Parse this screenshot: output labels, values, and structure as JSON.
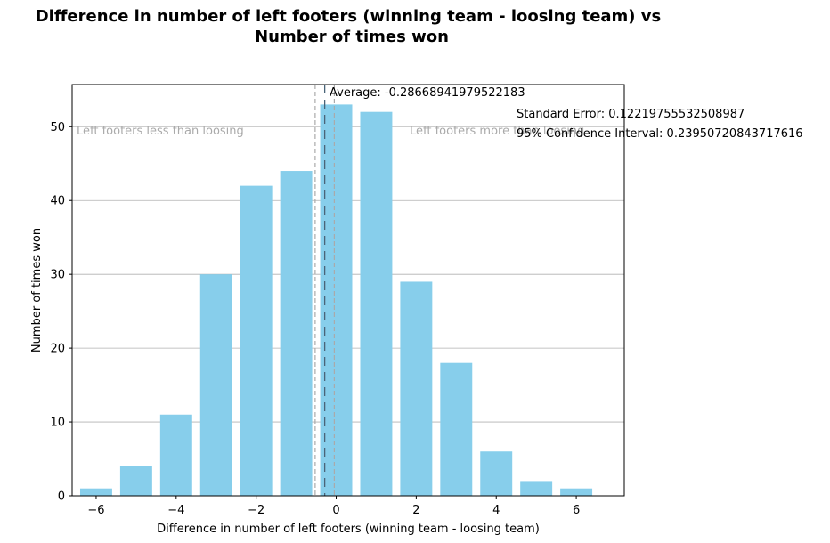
{
  "chart_data": {
    "type": "bar",
    "title_lines": [
      "Difference in number of left footers (winning team - loosing team) vs",
      "Number of times won"
    ],
    "xlabel": "Difference in number of left footers (winning team - loosing team)",
    "ylabel": "Number of times won",
    "x": [
      -6,
      -5,
      -4,
      -3,
      -2,
      -1,
      0,
      1,
      2,
      3,
      4,
      5,
      6
    ],
    "values": [
      1,
      4,
      11,
      30,
      42,
      44,
      53,
      52,
      29,
      18,
      6,
      2,
      1
    ],
    "xlim": [
      -6.6,
      7.2
    ],
    "ylim": [
      0,
      55.7
    ],
    "xticks": [
      -6,
      -4,
      -2,
      0,
      2,
      4,
      6
    ],
    "xtick_labels": [
      "−6",
      "−4",
      "−2",
      "0",
      "2",
      "4",
      "6"
    ],
    "yticks": [
      0,
      10,
      20,
      30,
      40,
      50
    ],
    "ytick_labels": [
      "0",
      "10",
      "20",
      "30",
      "40",
      "50"
    ],
    "bar_color": "#87ceeb",
    "grid": "horizontal",
    "mean_value": -0.28668941979522183,
    "ci_lower": -0.526196628232398,
    "ci_upper": -0.04718221135804567,
    "average_text": "Average: -0.28668941979522183",
    "stderr_text": "Standard Error: 0.12219755532508987",
    "ci_text": "95% Confidence Interval: 0.23950720843717616",
    "left_region_text": "Left footers less than loosing",
    "right_region_text": "Left footers more than loosing"
  }
}
